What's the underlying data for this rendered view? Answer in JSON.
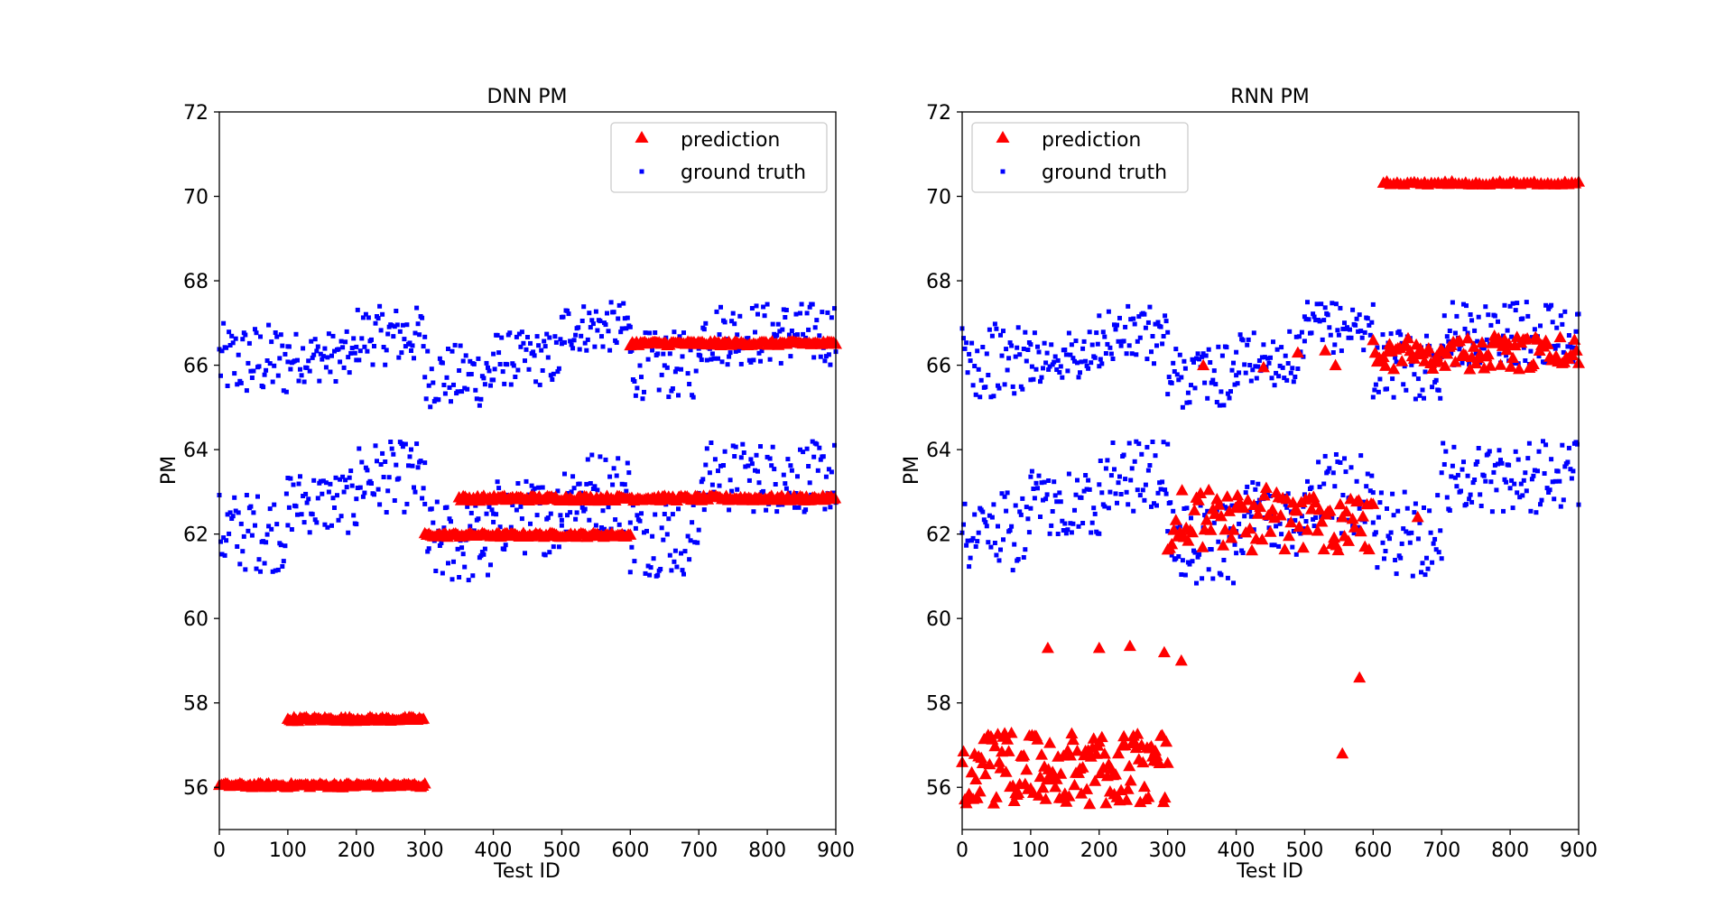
{
  "figure": {
    "colors": {
      "prediction": "#ff0000",
      "ground_truth": "#0000ff"
    }
  },
  "chart_data": [
    {
      "type": "scatter",
      "title": "DNN PM",
      "xlabel": "Test ID",
      "ylabel": "PM",
      "xlim": [
        0,
        900
      ],
      "ylim": [
        55,
        72
      ],
      "xticks": [
        0,
        100,
        200,
        300,
        400,
        500,
        600,
        700,
        800,
        900
      ],
      "yticks": [
        56,
        58,
        60,
        62,
        64,
        66,
        68,
        70,
        72
      ],
      "grid": false,
      "legend": {
        "placement": "top-right",
        "entries": [
          "prediction",
          "ground truth"
        ]
      },
      "series": [
        {
          "name": "prediction",
          "marker": "triangle",
          "color": "#ff0000",
          "segments": [
            {
              "x_range": [
                0,
                300
              ],
              "step": 3,
              "y": 56.05,
              "jitter": 0.05
            },
            {
              "x_range": [
                100,
                300
              ],
              "step": 3,
              "y": 57.62,
              "jitter": 0.05
            },
            {
              "x_range": [
                300,
                600
              ],
              "step": 3,
              "y": 61.98,
              "jitter": 0.05
            },
            {
              "x_range": [
                350,
                900
              ],
              "step": 3,
              "y": 62.85,
              "jitter": 0.06
            },
            {
              "x_range": [
                600,
                900
              ],
              "step": 3,
              "y": 66.52,
              "jitter": 0.05
            }
          ]
        },
        {
          "name": "ground truth",
          "marker": "square",
          "color": "#0000ff",
          "segments": [
            {
              "x_range": [
                0,
                100
              ],
              "step": 2,
              "y_range": [
                65.2,
                67.0
              ]
            },
            {
              "x_range": [
                100,
                200
              ],
              "step": 2,
              "y_range": [
                65.6,
                66.8
              ]
            },
            {
              "x_range": [
                200,
                300
              ],
              "step": 2,
              "y_range": [
                66.0,
                67.4
              ]
            },
            {
              "x_range": [
                300,
                400
              ],
              "step": 2,
              "y_range": [
                65.0,
                66.5
              ]
            },
            {
              "x_range": [
                400,
                500
              ],
              "step": 2,
              "y_range": [
                65.5,
                66.8
              ]
            },
            {
              "x_range": [
                500,
                600
              ],
              "step": 2,
              "y_range": [
                66.3,
                67.5
              ]
            },
            {
              "x_range": [
                600,
                700
              ],
              "step": 2,
              "y_range": [
                65.2,
                66.8
              ]
            },
            {
              "x_range": [
                700,
                900
              ],
              "step": 2,
              "y_range": [
                66.0,
                67.5
              ]
            },
            {
              "x_range": [
                0,
                100
              ],
              "step": 2,
              "y_range": [
                61.1,
                63.0
              ]
            },
            {
              "x_range": [
                100,
                200
              ],
              "step": 2,
              "y_range": [
                62.0,
                63.5
              ]
            },
            {
              "x_range": [
                200,
                300
              ],
              "step": 2,
              "y_range": [
                62.5,
                64.2
              ]
            },
            {
              "x_range": [
                300,
                400
              ],
              "step": 2,
              "y_range": [
                60.8,
                62.8
              ]
            },
            {
              "x_range": [
                400,
                500
              ],
              "step": 2,
              "y_range": [
                61.5,
                63.3
              ]
            },
            {
              "x_range": [
                500,
                600
              ],
              "step": 2,
              "y_range": [
                62.0,
                64.0
              ]
            },
            {
              "x_range": [
                600,
                700
              ],
              "step": 2,
              "y_range": [
                61.0,
                63.0
              ]
            },
            {
              "x_range": [
                700,
                900
              ],
              "step": 2,
              "y_range": [
                62.5,
                64.2
              ]
            }
          ]
        }
      ]
    },
    {
      "type": "scatter",
      "title": "RNN PM",
      "xlabel": "Test ID",
      "ylabel": "PM",
      "xlim": [
        0,
        900
      ],
      "ylim": [
        55,
        72
      ],
      "xticks": [
        0,
        100,
        200,
        300,
        400,
        500,
        600,
        700,
        800,
        900
      ],
      "yticks": [
        56,
        58,
        60,
        62,
        64,
        66,
        68,
        70,
        72
      ],
      "grid": false,
      "legend": {
        "placement": "top-left",
        "entries": [
          "prediction",
          "ground truth"
        ]
      },
      "series": [
        {
          "name": "prediction",
          "marker": "triangle",
          "color": "#ff0000",
          "segments": [
            {
              "x_range": [
                0,
                300
              ],
              "step": 2,
              "y_range": [
                55.6,
                57.3
              ]
            },
            {
              "x_range": [
                300,
                600
              ],
              "step": 3,
              "y_range": [
                61.6,
                63.1
              ]
            },
            {
              "x_range": [
                600,
                900
              ],
              "step": 3,
              "y_range": [
                65.9,
                66.7
              ]
            },
            {
              "x_range": [
                615,
                900
              ],
              "step": 5,
              "y": 70.32,
              "jitter": 0.04
            }
          ],
          "points": [
            [
              125,
              59.3
            ],
            [
              200,
              59.3
            ],
            [
              245,
              59.35
            ],
            [
              295,
              59.2
            ],
            [
              320,
              59.0
            ],
            [
              580,
              58.6
            ],
            [
              555,
              56.8
            ],
            [
              352,
              66.0
            ],
            [
              440,
              65.95
            ],
            [
              490,
              66.3
            ],
            [
              530,
              66.35
            ],
            [
              545,
              66.0
            ],
            [
              665,
              62.4
            ]
          ]
        },
        {
          "name": "ground truth",
          "marker": "square",
          "color": "#0000ff",
          "segments": [
            {
              "x_range": [
                0,
                100
              ],
              "step": 2,
              "y_range": [
                65.2,
                67.0
              ]
            },
            {
              "x_range": [
                100,
                200
              ],
              "step": 2,
              "y_range": [
                65.6,
                66.8
              ]
            },
            {
              "x_range": [
                200,
                300
              ],
              "step": 2,
              "y_range": [
                66.0,
                67.4
              ]
            },
            {
              "x_range": [
                300,
                400
              ],
              "step": 2,
              "y_range": [
                65.0,
                66.5
              ]
            },
            {
              "x_range": [
                400,
                500
              ],
              "step": 2,
              "y_range": [
                65.5,
                66.8
              ]
            },
            {
              "x_range": [
                500,
                600
              ],
              "step": 2,
              "y_range": [
                66.3,
                67.5
              ]
            },
            {
              "x_range": [
                600,
                700
              ],
              "step": 2,
              "y_range": [
                65.2,
                66.8
              ]
            },
            {
              "x_range": [
                700,
                900
              ],
              "step": 2,
              "y_range": [
                66.0,
                67.5
              ]
            },
            {
              "x_range": [
                0,
                100
              ],
              "step": 2,
              "y_range": [
                61.1,
                63.0
              ]
            },
            {
              "x_range": [
                100,
                200
              ],
              "step": 2,
              "y_range": [
                62.0,
                63.5
              ]
            },
            {
              "x_range": [
                200,
                300
              ],
              "step": 2,
              "y_range": [
                62.5,
                64.2
              ]
            },
            {
              "x_range": [
                300,
                400
              ],
              "step": 2,
              "y_range": [
                60.8,
                62.8
              ]
            },
            {
              "x_range": [
                400,
                500
              ],
              "step": 2,
              "y_range": [
                61.5,
                63.3
              ]
            },
            {
              "x_range": [
                500,
                600
              ],
              "step": 2,
              "y_range": [
                62.0,
                64.0
              ]
            },
            {
              "x_range": [
                600,
                700
              ],
              "step": 2,
              "y_range": [
                61.0,
                63.0
              ]
            },
            {
              "x_range": [
                700,
                900
              ],
              "step": 2,
              "y_range": [
                62.5,
                64.2
              ]
            }
          ]
        }
      ]
    }
  ]
}
